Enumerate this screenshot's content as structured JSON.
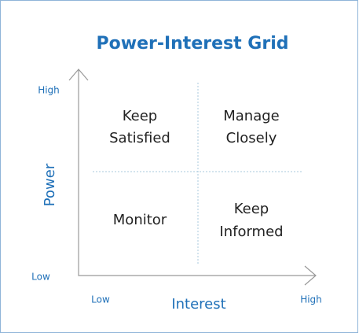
{
  "title": "Power-Interest Grid",
  "y_axis": {
    "label": "Power",
    "low": "Low",
    "high": "High"
  },
  "x_axis": {
    "label": "Interest",
    "low": "Low",
    "high": "High"
  },
  "quadrants": [
    {
      "lines": [
        "Keep",
        "Satisfied"
      ]
    },
    {
      "lines": [
        "Manage",
        "Closely"
      ]
    },
    {
      "lines": [
        "Monitor"
      ]
    },
    {
      "lines": [
        "Keep",
        "Informed"
      ]
    }
  ]
}
